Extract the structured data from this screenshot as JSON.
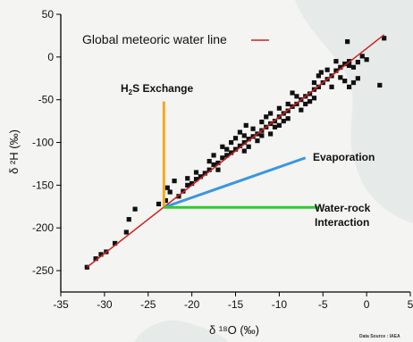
{
  "chart_data": {
    "type": "scatter",
    "xlim": [
      -35,
      5
    ],
    "ylim": [
      -275,
      50
    ],
    "xticks": [
      -35,
      -30,
      -25,
      -20,
      -15,
      -10,
      -5,
      0,
      5
    ],
    "yticks": [
      50,
      0,
      -50,
      -100,
      -150,
      -200,
      -250
    ],
    "xlabel": "δ ¹⁸O (‰)",
    "ylabel": "δ ²H (‰)",
    "grid": false,
    "legend": {
      "label": "Global meteoric water line",
      "position": "top-left",
      "color": "#cc2222"
    },
    "gmwl": {
      "slope": 8,
      "intercept": 10,
      "x_range": [
        -32,
        2
      ],
      "color": "#cc2222"
    },
    "origin_point": [
      -23.2,
      -176
    ],
    "annotations": [
      {
        "label_parts": [
          "H",
          "2",
          "S Exchange"
        ],
        "end": [
          -23.2,
          -52
        ],
        "color": "#f5a91e"
      },
      {
        "label_parts": [
          "Evaporation"
        ],
        "end": [
          -7,
          -118
        ],
        "color": "#3b96e0"
      },
      {
        "label_parts": [
          "Water-rock",
          "Interaction"
        ],
        "end": [
          -5.5,
          -176
        ],
        "color": "#2ecc2e"
      }
    ],
    "marker_color": "#111111",
    "points": [
      [
        -32,
        -246
      ],
      [
        -31,
        -236
      ],
      [
        -30.4,
        -231
      ],
      [
        -29.8,
        -228
      ],
      [
        -28.8,
        -218
      ],
      [
        -27.5,
        -205
      ],
      [
        -27.2,
        -190
      ],
      [
        -26.5,
        -178
      ],
      [
        -23.8,
        -172
      ],
      [
        -23,
        -168
      ],
      [
        -22.5,
        -158
      ],
      [
        -22.8,
        -153
      ],
      [
        -21.5,
        -163
      ],
      [
        -21,
        -157
      ],
      [
        -20.5,
        -150
      ],
      [
        -20,
        -148
      ],
      [
        -19.5,
        -143
      ],
      [
        -19,
        -140
      ],
      [
        -18.5,
        -136
      ],
      [
        -18,
        -132
      ],
      [
        -17.5,
        -126
      ],
      [
        -17,
        -124
      ],
      [
        -16.5,
        -118
      ],
      [
        -16,
        -115
      ],
      [
        -15.5,
        -112
      ],
      [
        -15,
        -108
      ],
      [
        -14.5,
        -104
      ],
      [
        -14,
        -100
      ],
      [
        -13.5,
        -96
      ],
      [
        -13,
        -93
      ],
      [
        -12.5,
        -90
      ],
      [
        -12,
        -86
      ],
      [
        -11.5,
        -82
      ],
      [
        -11,
        -78
      ],
      [
        -10.5,
        -75
      ],
      [
        -10,
        -70
      ],
      [
        -9.5,
        -66
      ],
      [
        -9,
        -63
      ],
      [
        -8.5,
        -58
      ],
      [
        -8,
        -55
      ],
      [
        -7.5,
        -50
      ],
      [
        -7,
        -46
      ],
      [
        -6.5,
        -43
      ],
      [
        -6,
        -38
      ],
      [
        -5.5,
        -35
      ],
      [
        -5,
        -30
      ],
      [
        -4.5,
        -26
      ],
      [
        -4,
        -22
      ],
      [
        -3.5,
        -16
      ],
      [
        -3,
        -12
      ],
      [
        -2.5,
        -8
      ],
      [
        -15.5,
        -100
      ],
      [
        -13,
        -84
      ],
      [
        -11,
        -90
      ],
      [
        -9,
        -72
      ],
      [
        -12,
        -76
      ],
      [
        -14,
        -92
      ],
      [
        -16,
        -108
      ],
      [
        -10,
        -60
      ],
      [
        -8,
        -46
      ],
      [
        -6,
        -30
      ],
      [
        -7,
        -55
      ],
      [
        -11.5,
        -70
      ],
      [
        -17.5,
        -115
      ],
      [
        -14.5,
        -88
      ],
      [
        -20.5,
        -142
      ],
      [
        -19.5,
        -135
      ],
      [
        -18,
        -122
      ],
      [
        -22,
        -145
      ],
      [
        -6.5,
        -52
      ],
      [
        -4,
        -35
      ],
      [
        -3,
        -24
      ],
      [
        -2,
        -5
      ],
      [
        -1,
        -6
      ],
      [
        0,
        -3
      ],
      [
        -4.5,
        -15
      ],
      [
        -3.5,
        -5
      ],
      [
        -5.5,
        -22
      ],
      [
        -2.5,
        -28
      ],
      [
        -2,
        -35
      ],
      [
        -1,
        -25
      ],
      [
        -1.5,
        -30
      ],
      [
        -2,
        -10
      ],
      [
        -5.2,
        -18
      ],
      [
        -9.5,
        -75
      ],
      [
        -12.5,
        -98
      ],
      [
        -16.5,
        -105
      ],
      [
        -17,
        -132
      ],
      [
        -8.5,
        -42
      ],
      [
        -10.5,
        -82
      ],
      [
        -13.5,
        -105
      ],
      [
        -15,
        -95
      ],
      [
        -11,
        -66
      ],
      [
        -9,
        -55
      ],
      [
        -7.5,
        -62
      ],
      [
        -6,
        -48
      ],
      [
        -10,
        -80
      ],
      [
        -12,
        -92
      ],
      [
        -14,
        -110
      ],
      [
        -1.5,
        -12
      ],
      [
        -0.5,
        1
      ],
      [
        -2.2,
        18
      ],
      [
        2,
        22
      ],
      [
        1.5,
        -33
      ],
      [
        -13.8,
        -80
      ]
    ]
  },
  "source_note": "Data Source : IAEA"
}
